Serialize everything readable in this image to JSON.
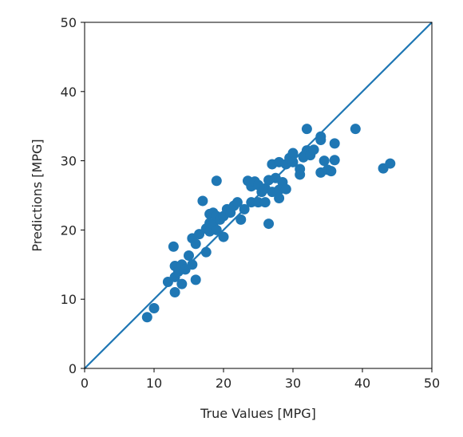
{
  "chart_data": {
    "type": "scatter",
    "title": "",
    "xlabel": "True Values [MPG]",
    "ylabel": "Predictions [MPG]",
    "xlim": [
      0,
      50
    ],
    "ylim": [
      0,
      50
    ],
    "xticks": [
      0,
      10,
      20,
      30,
      40,
      50
    ],
    "yticks": [
      0,
      10,
      20,
      30,
      40,
      50
    ],
    "grid": false,
    "point_color": "#1f77b4",
    "reference_line": {
      "x": [
        0,
        50
      ],
      "y": [
        0,
        50
      ],
      "color": "#1f77b4"
    },
    "points": [
      [
        9.0,
        7.4
      ],
      [
        10.0,
        8.7
      ],
      [
        12.0,
        12.5
      ],
      [
        12.8,
        17.6
      ],
      [
        13.0,
        11.0
      ],
      [
        13.0,
        13.2
      ],
      [
        13.0,
        14.8
      ],
      [
        13.5,
        14.0
      ],
      [
        14.0,
        12.2
      ],
      [
        14.0,
        15.0
      ],
      [
        14.5,
        14.3
      ],
      [
        15.0,
        16.3
      ],
      [
        15.5,
        18.8
      ],
      [
        15.5,
        15.0
      ],
      [
        16.0,
        12.8
      ],
      [
        16.0,
        18.0
      ],
      [
        16.5,
        19.4
      ],
      [
        17.0,
        24.2
      ],
      [
        17.5,
        16.8
      ],
      [
        17.5,
        20.2
      ],
      [
        18.0,
        22.3
      ],
      [
        18.0,
        21.0
      ],
      [
        18.0,
        19.8
      ],
      [
        18.5,
        20.8
      ],
      [
        18.5,
        22.5
      ],
      [
        19.0,
        27.1
      ],
      [
        19.0,
        20.0
      ],
      [
        19.0,
        22.0
      ],
      [
        19.5,
        21.5
      ],
      [
        20.0,
        19.0
      ],
      [
        20.0,
        22.0
      ],
      [
        20.5,
        23.0
      ],
      [
        21.0,
        22.5
      ],
      [
        21.5,
        23.5
      ],
      [
        22.0,
        24.0
      ],
      [
        22.5,
        21.5
      ],
      [
        23.0,
        23.0
      ],
      [
        23.5,
        27.1
      ],
      [
        24.0,
        26.3
      ],
      [
        24.0,
        24.0
      ],
      [
        24.5,
        27.0
      ],
      [
        25.0,
        26.5
      ],
      [
        25.0,
        24.0
      ],
      [
        25.5,
        25.5
      ],
      [
        26.0,
        26.0
      ],
      [
        26.0,
        24.0
      ],
      [
        26.5,
        27.2
      ],
      [
        26.5,
        20.9
      ],
      [
        27.0,
        29.5
      ],
      [
        27.0,
        25.5
      ],
      [
        27.5,
        27.5
      ],
      [
        28.0,
        24.6
      ],
      [
        28.0,
        25.8
      ],
      [
        28.0,
        29.8
      ],
      [
        28.5,
        26.9
      ],
      [
        29.0,
        29.5
      ],
      [
        29.0,
        25.9
      ],
      [
        29.5,
        30.4
      ],
      [
        30.0,
        31.1
      ],
      [
        30.0,
        29.8
      ],
      [
        31.0,
        28.0
      ],
      [
        31.0,
        28.8
      ],
      [
        31.5,
        30.5
      ],
      [
        32.0,
        34.6
      ],
      [
        32.0,
        31.5
      ],
      [
        32.5,
        30.8
      ],
      [
        33.0,
        31.6
      ],
      [
        34.0,
        33.5
      ],
      [
        34.0,
        28.3
      ],
      [
        34.0,
        33.0
      ],
      [
        34.5,
        30.0
      ],
      [
        35.0,
        28.7
      ],
      [
        35.5,
        28.5
      ],
      [
        36.0,
        32.5
      ],
      [
        36.0,
        30.1
      ],
      [
        39.0,
        34.6
      ],
      [
        43.0,
        28.9
      ],
      [
        44.0,
        29.6
      ]
    ]
  }
}
